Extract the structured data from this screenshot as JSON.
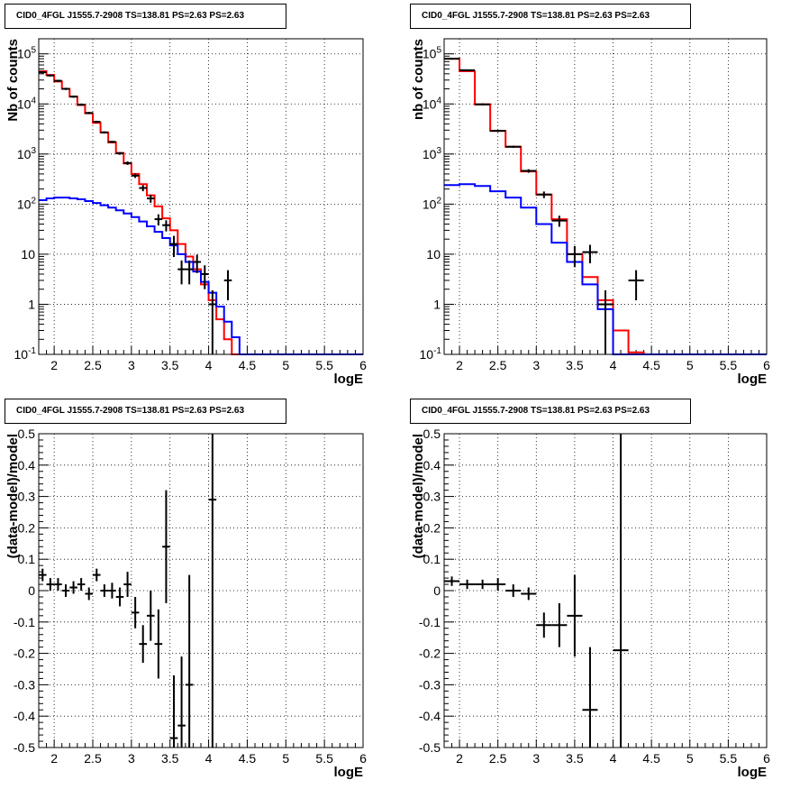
{
  "panels": [
    {
      "title": "CID0_4FGL J1555.7-2908 TS=138.81 PS=2.63 PS=2.63"
    },
    {
      "title": "CID0_4FGL J1555.7-2908 TS=138.81 PS=2.63 PS=2.63"
    },
    {
      "title": "CID0_4FGL J1555.7-2908 TS=138.81 PS=2.63 PS=2.63"
    },
    {
      "title": "CID0_4FGL J1555.7-2908 TS=138.81 PS=2.63 PS=2.63"
    }
  ],
  "colors": {
    "data": "#000000",
    "total_model": "#ff0000",
    "source_model": "#0000ff",
    "grid": "#000000"
  },
  "chart_data": [
    {
      "type": "line",
      "title": "CID0_4FGL J1555.7-2908 TS=138.81 PS=2.63 PS=2.63",
      "xlabel": "logE",
      "ylabel": "Nb of counts",
      "xlim": [
        1.8,
        6.0
      ],
      "ylim": [
        0.1,
        200000
      ],
      "yscale": "log",
      "grid": true,
      "x_ticks": [
        "2",
        "2.5",
        "3",
        "3.5",
        "4",
        "4.5",
        "5",
        "5.5",
        "6"
      ],
      "y_ticks": [
        "10^-1",
        "1",
        "10",
        "10^2",
        "10^3",
        "10^4",
        "10^5"
      ],
      "bin_edges": [
        1.8,
        1.9,
        2.0,
        2.1,
        2.2,
        2.3,
        2.4,
        2.5,
        2.6,
        2.7,
        2.8,
        2.9,
        3.0,
        3.1,
        3.2,
        3.3,
        3.4,
        3.5,
        3.6,
        3.7,
        3.8,
        3.9,
        4.0,
        4.1,
        4.2,
        4.3,
        4.4,
        4.5,
        4.6,
        4.7,
        4.8,
        4.9,
        5.0,
        5.1,
        5.2,
        5.3,
        5.4,
        5.5,
        5.6,
        5.7,
        5.8,
        5.9,
        6.0
      ],
      "series": [
        {
          "name": "",
          "color": "#ff0000",
          "values": [
            45000,
            38000,
            28000,
            20000,
            14000,
            9500,
            6500,
            4200,
            2700,
            1700,
            1050,
            650,
            400,
            250,
            150,
            90,
            52,
            30,
            16,
            9,
            5,
            2.5,
            1.2,
            0.5,
            0.2,
            0.1,
            0.1,
            0.1,
            0.1,
            0.1,
            0.1,
            0.1,
            0.1,
            0.1,
            0.1,
            0.1,
            0.1,
            0.1,
            0.1,
            0.1,
            0.1,
            0.1
          ]
        },
        {
          "name": "",
          "color": "#0000ff",
          "values": [
            120,
            130,
            135,
            135,
            130,
            125,
            115,
            105,
            95,
            85,
            75,
            65,
            55,
            45,
            36,
            28,
            21,
            15,
            10,
            7,
            4.5,
            2.8,
            1.7,
            0.9,
            0.45,
            0.22,
            0.1,
            0.1,
            0.1,
            0.1,
            0.1,
            0.1,
            0.1,
            0.1,
            0.1,
            0.1,
            0.1,
            0.1,
            0.1,
            0.1,
            0.1,
            0.1
          ]
        }
      ],
      "points": [
        {
          "x": 1.85,
          "y": 43000,
          "yerr_rel": 0.05
        },
        {
          "x": 1.95,
          "y": 37000,
          "yerr_rel": 0.05
        },
        {
          "x": 2.05,
          "y": 29000,
          "yerr_rel": 0.05
        },
        {
          "x": 2.15,
          "y": 20000,
          "yerr_rel": 0.05
        },
        {
          "x": 2.25,
          "y": 14000,
          "yerr_rel": 0.05
        },
        {
          "x": 2.35,
          "y": 9700,
          "yerr_rel": 0.05
        },
        {
          "x": 2.45,
          "y": 6600,
          "yerr_rel": 0.05
        },
        {
          "x": 2.55,
          "y": 4400,
          "yerr_rel": 0.05
        },
        {
          "x": 2.65,
          "y": 2700,
          "yerr_rel": 0.05
        },
        {
          "x": 2.75,
          "y": 1750,
          "yerr_rel": 0.05
        },
        {
          "x": 2.85,
          "y": 1030,
          "yerr_rel": 0.06
        },
        {
          "x": 2.95,
          "y": 660,
          "yerr_rel": 0.08
        },
        {
          "x": 3.05,
          "y": 370,
          "yerr_rel": 0.1
        },
        {
          "x": 3.15,
          "y": 210,
          "yerr_rel": 0.14
        },
        {
          "x": 3.25,
          "y": 130,
          "yerr_rel": 0.18
        },
        {
          "x": 3.35,
          "y": 50,
          "yerr_rel": 0.25
        },
        {
          "x": 3.45,
          "y": 38,
          "yerr_rel": 0.25
        },
        {
          "x": 3.55,
          "y": 16,
          "yerr_rel": 0.45
        },
        {
          "x": 3.65,
          "y": 5,
          "yerr_rel": 0.5
        },
        {
          "x": 3.75,
          "y": 5,
          "yerr_rel": 0.5
        },
        {
          "x": 3.85,
          "y": 7,
          "yerr_rel": 0.4
        },
        {
          "x": 3.95,
          "y": 4,
          "yerr_rel": 0.5
        },
        {
          "x": 4.05,
          "y": 1,
          "yerr_rel": 0.9
        },
        {
          "x": 4.25,
          "y": 3,
          "yerr_rel": 0.6
        }
      ]
    },
    {
      "type": "line",
      "title": "CID0_4FGL J1555.7-2908 TS=138.81 PS=2.63 PS=2.63",
      "xlabel": "logE",
      "ylabel": "nb of counts",
      "xlim": [
        1.8,
        6.0
      ],
      "ylim": [
        0.1,
        200000
      ],
      "yscale": "log",
      "grid": true,
      "x_ticks": [
        "2",
        "2.5",
        "3",
        "3.5",
        "4",
        "4.5",
        "5",
        "5.5",
        "6"
      ],
      "y_ticks": [
        "10^-1",
        "1",
        "10",
        "10^2",
        "10^3",
        "10^4",
        "10^5"
      ],
      "bin_edges": [
        1.8,
        2.0,
        2.2,
        2.4,
        2.6,
        2.8,
        3.0,
        3.2,
        3.4,
        3.6,
        3.8,
        4.0,
        4.2,
        4.4,
        4.6,
        4.8,
        5.0,
        5.2,
        5.4,
        5.6,
        5.8,
        6.0
      ],
      "series": [
        {
          "name": "",
          "color": "#ff0000",
          "values": [
            80000,
            45000,
            9800,
            2900,
            1400,
            450,
            155,
            50,
            10,
            3.5,
            1.2,
            0.3,
            0.11,
            0.1,
            0.1,
            0.1,
            0.1,
            0.1,
            0.1,
            0.1,
            0.1
          ]
        },
        {
          "name": "",
          "color": "#0000ff",
          "values": [
            240,
            250,
            230,
            180,
            135,
            85,
            40,
            17,
            7,
            2.5,
            0.8,
            0.1,
            0.1,
            0.1,
            0.1,
            0.1,
            0.1,
            0.1,
            0.1,
            0.1,
            0.1
          ]
        }
      ],
      "points": [
        {
          "x": 1.9,
          "y": 80000,
          "yerr_rel": 0.04
        },
        {
          "x": 2.1,
          "y": 47000,
          "yerr_rel": 0.04
        },
        {
          "x": 2.3,
          "y": 9800,
          "yerr_rel": 0.05
        },
        {
          "x": 2.5,
          "y": 2900,
          "yerr_rel": 0.05
        },
        {
          "x": 2.7,
          "y": 1400,
          "yerr_rel": 0.05
        },
        {
          "x": 2.9,
          "y": 460,
          "yerr_rel": 0.08
        },
        {
          "x": 3.1,
          "y": 155,
          "yerr_rel": 0.15
        },
        {
          "x": 3.3,
          "y": 47,
          "yerr_rel": 0.25
        },
        {
          "x": 3.5,
          "y": 10,
          "yerr_rel": 0.45
        },
        {
          "x": 3.7,
          "y": 11,
          "yerr_rel": 0.4
        },
        {
          "x": 3.9,
          "y": 1,
          "yerr_rel": 0.9
        },
        {
          "x": 4.3,
          "y": 3,
          "yerr_rel": 0.6
        }
      ]
    },
    {
      "type": "scatter",
      "title": "CID0_4FGL J1555.7-2908 TS=138.81 PS=2.63 PS=2.63",
      "xlabel": "logE",
      "ylabel": "(data-model)/model",
      "xlim": [
        1.8,
        6.0
      ],
      "ylim": [
        -0.5,
        0.5
      ],
      "grid": true,
      "x_ticks": [
        "2",
        "2.5",
        "3",
        "3.5",
        "4",
        "4.5",
        "5",
        "5.5",
        "6"
      ],
      "y_ticks": [
        "-0.5",
        "-0.4",
        "-0.3",
        "-0.2",
        "-0.1",
        "0",
        "0.1",
        "0.2",
        "0.3",
        "0.4",
        "0.5"
      ],
      "points": [
        {
          "x": 1.85,
          "y": 0.05,
          "xerr": 0.05,
          "yerr": 0.02
        },
        {
          "x": 1.95,
          "y": 0.02,
          "xerr": 0.05,
          "yerr": 0.02
        },
        {
          "x": 2.05,
          "y": 0.02,
          "xerr": 0.05,
          "yerr": 0.02
        },
        {
          "x": 2.15,
          "y": 0.0,
          "xerr": 0.05,
          "yerr": 0.02
        },
        {
          "x": 2.25,
          "y": 0.01,
          "xerr": 0.05,
          "yerr": 0.02
        },
        {
          "x": 2.35,
          "y": 0.02,
          "xerr": 0.05,
          "yerr": 0.02
        },
        {
          "x": 2.45,
          "y": -0.01,
          "xerr": 0.05,
          "yerr": 0.02
        },
        {
          "x": 2.55,
          "y": 0.05,
          "xerr": 0.05,
          "yerr": 0.02
        },
        {
          "x": 2.65,
          "y": 0.0,
          "xerr": 0.05,
          "yerr": 0.02
        },
        {
          "x": 2.75,
          "y": 0.0,
          "xerr": 0.05,
          "yerr": 0.025
        },
        {
          "x": 2.85,
          "y": -0.02,
          "xerr": 0.05,
          "yerr": 0.03
        },
        {
          "x": 2.95,
          "y": 0.02,
          "xerr": 0.05,
          "yerr": 0.04
        },
        {
          "x": 3.05,
          "y": -0.07,
          "xerr": 0.05,
          "yerr": 0.05
        },
        {
          "x": 3.15,
          "y": -0.17,
          "xerr": 0.05,
          "yerr": 0.06
        },
        {
          "x": 3.25,
          "y": -0.08,
          "xerr": 0.05,
          "yerr": 0.08
        },
        {
          "x": 3.35,
          "y": -0.17,
          "xerr": 0.05,
          "yerr": 0.11
        },
        {
          "x": 3.45,
          "y": 0.14,
          "xerr": 0.05,
          "yerr": 0.18
        },
        {
          "x": 3.55,
          "y": -0.47,
          "xerr": 0.05,
          "yerr": 0.2
        },
        {
          "x": 3.65,
          "y": -0.43,
          "xerr": 0.05,
          "yerr": 0.22
        },
        {
          "x": 3.75,
          "y": -0.3,
          "xerr": 0.05,
          "yerr": 0.35
        },
        {
          "x": 4.05,
          "y": 0.29,
          "xerr": 0.05,
          "yerr": 0.9
        }
      ]
    },
    {
      "type": "scatter",
      "title": "CID0_4FGL J1555.7-2908 TS=138.81 PS=2.63 PS=2.63",
      "xlabel": "logE",
      "ylabel": "(data-model)/model",
      "xlim": [
        1.8,
        6.0
      ],
      "ylim": [
        -0.5,
        0.5
      ],
      "grid": true,
      "x_ticks": [
        "2",
        "2.5",
        "3",
        "3.5",
        "4",
        "4.5",
        "5",
        "5.5",
        "6"
      ],
      "y_ticks": [
        "-0.5",
        "-0.4",
        "-0.3",
        "-0.2",
        "-0.1",
        "0",
        "0.1",
        "0.2",
        "0.3",
        "0.4",
        "0.5"
      ],
      "points": [
        {
          "x": 1.9,
          "y": 0.03,
          "xerr": 0.1,
          "yerr": 0.015
        },
        {
          "x": 2.1,
          "y": 0.02,
          "xerr": 0.1,
          "yerr": 0.015
        },
        {
          "x": 2.3,
          "y": 0.02,
          "xerr": 0.1,
          "yerr": 0.015
        },
        {
          "x": 2.5,
          "y": 0.02,
          "xerr": 0.1,
          "yerr": 0.02
        },
        {
          "x": 2.7,
          "y": 0.0,
          "xerr": 0.1,
          "yerr": 0.02
        },
        {
          "x": 2.9,
          "y": -0.01,
          "xerr": 0.1,
          "yerr": 0.02
        },
        {
          "x": 3.1,
          "y": -0.11,
          "xerr": 0.1,
          "yerr": 0.04
        },
        {
          "x": 3.3,
          "y": -0.11,
          "xerr": 0.1,
          "yerr": 0.07
        },
        {
          "x": 3.5,
          "y": -0.08,
          "xerr": 0.1,
          "yerr": 0.13
        },
        {
          "x": 3.7,
          "y": -0.38,
          "xerr": 0.1,
          "yerr": 0.2
        },
        {
          "x": 4.1,
          "y": -0.19,
          "xerr": 0.1,
          "yerr": 0.9
        }
      ]
    }
  ]
}
